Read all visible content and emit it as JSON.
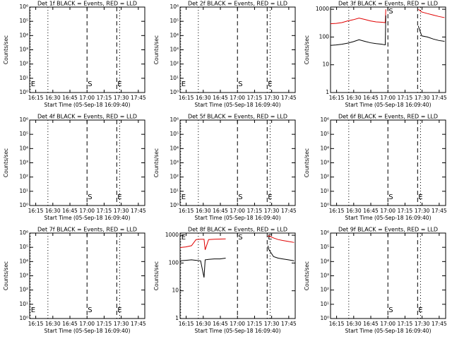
{
  "chart_data": [
    {
      "type": "line",
      "title": "Det 1f BLACK = Events, RED = LLD",
      "xlabel": "Start Time (05-Sep-18 16:09:40)",
      "ylabel": "Counts/sec",
      "xlim": [
        0,
        101
      ],
      "xticks": [
        {
          "value": 5.33,
          "label": "16:15"
        },
        {
          "value": 20.33,
          "label": "16:30"
        },
        {
          "value": 35.33,
          "label": "16:45"
        },
        {
          "value": 50.33,
          "label": "17:00"
        },
        {
          "value": 65.33,
          "label": "17:15"
        },
        {
          "value": 80.33,
          "label": "17:30"
        },
        {
          "value": 95.33,
          "label": "17:45"
        }
      ],
      "ylog": true,
      "ylim": [
        1,
        1000000
      ],
      "yticks": [
        {
          "value": 1,
          "label": "10⁰"
        },
        {
          "value": 10,
          "label": "10¹"
        },
        {
          "value": 100,
          "label": "10²"
        },
        {
          "value": 1000,
          "label": "10³"
        },
        {
          "value": 10000,
          "label": "10⁴"
        },
        {
          "value": 100000,
          "label": "10⁵"
        },
        {
          "value": 1000000,
          "label": "10⁶"
        }
      ],
      "vlines": [
        {
          "x": 0.5,
          "style": "dotted",
          "label": "E"
        },
        {
          "x": 16,
          "style": "dotted"
        },
        {
          "x": 50.33,
          "style": "dashed",
          "label": "S"
        },
        {
          "x": 76.4,
          "style": "dashed",
          "label": "E"
        },
        {
          "x": 79,
          "style": "dotted"
        }
      ],
      "vline_label_position": "bottom",
      "x": [],
      "series": []
    },
    {
      "type": "line",
      "title": "Det 2f BLACK = Events, RED = LLD",
      "xlabel": "Start Time (05-Sep-18 16:09:40)",
      "ylabel": "Counts/sec",
      "xlim": [
        0,
        101
      ],
      "xticks": [
        {
          "value": 5.33,
          "label": "16:15"
        },
        {
          "value": 20.33,
          "label": "16:30"
        },
        {
          "value": 35.33,
          "label": "16:45"
        },
        {
          "value": 50.33,
          "label": "17:00"
        },
        {
          "value": 65.33,
          "label": "17:15"
        },
        {
          "value": 80.33,
          "label": "17:30"
        },
        {
          "value": 95.33,
          "label": "17:45"
        }
      ],
      "ylog": true,
      "ylim": [
        1,
        1000000
      ],
      "yticks": [
        {
          "value": 1,
          "label": "10⁰"
        },
        {
          "value": 10,
          "label": "10¹"
        },
        {
          "value": 100,
          "label": "10²"
        },
        {
          "value": 1000,
          "label": "10³"
        },
        {
          "value": 10000,
          "label": "10⁴"
        },
        {
          "value": 100000,
          "label": "10⁵"
        },
        {
          "value": 1000000,
          "label": "10⁶"
        }
      ],
      "vlines": [
        {
          "x": 0.5,
          "style": "dotted",
          "label": "E"
        },
        {
          "x": 16,
          "style": "dotted"
        },
        {
          "x": 50.33,
          "style": "dashed",
          "label": "S"
        },
        {
          "x": 76.4,
          "style": "dashed",
          "label": "E"
        },
        {
          "x": 79,
          "style": "dotted"
        }
      ],
      "vline_label_position": "bottom",
      "x": [],
      "series": []
    },
    {
      "type": "line",
      "title": "Det 3f BLACK = Events, RED = LLD",
      "xlabel": "Start Time (05-Sep-18 16:09:40)",
      "ylabel": "Counts/sec",
      "xlim": [
        0,
        101
      ],
      "xticks": [
        {
          "value": 5.33,
          "label": "16:15"
        },
        {
          "value": 20.33,
          "label": "16:30"
        },
        {
          "value": 35.33,
          "label": "16:45"
        },
        {
          "value": 50.33,
          "label": "17:00"
        },
        {
          "value": 65.33,
          "label": "17:15"
        },
        {
          "value": 80.33,
          "label": "17:30"
        },
        {
          "value": 95.33,
          "label": "17:45"
        }
      ],
      "ylog": true,
      "ylim": [
        1,
        1200
      ],
      "yticks": [
        1,
        10,
        100,
        1000
      ],
      "vlines": [
        {
          "x": 16,
          "style": "dotted"
        },
        {
          "x": 50.33,
          "style": "dashed",
          "label": "S"
        },
        {
          "x": 76.4,
          "style": "dashed"
        },
        {
          "x": 79,
          "style": "dotted"
        }
      ],
      "vline_label_position": "top",
      "x": [
        0,
        5,
        10,
        15,
        20,
        25,
        30,
        35,
        40,
        45,
        48,
        48.5,
        52,
        77,
        80,
        85,
        90,
        95,
        100
      ],
      "series": [
        {
          "color": "#e00000",
          "values": [
            300,
            310,
            330,
            380,
            420,
            480,
            430,
            380,
            350,
            340,
            330,
            1000,
            null,
            1000,
            800,
            700,
            620,
            550,
            500
          ]
        },
        {
          "color": "#000000",
          "values": [
            50,
            52,
            55,
            60,
            68,
            80,
            70,
            62,
            58,
            55,
            52,
            600,
            null,
            250,
            110,
            100,
            85,
            75,
            70
          ]
        }
      ]
    },
    {
      "type": "line",
      "title": "Det 4f BLACK = Events, RED = LLD",
      "xlabel": "Start Time (05-Sep-18 16:09:40)",
      "ylabel": "Counts/sec",
      "xlim": [
        0,
        101
      ],
      "xticks": [
        {
          "value": 5.33,
          "label": "16:15"
        },
        {
          "value": 20.33,
          "label": "16:30"
        },
        {
          "value": 35.33,
          "label": "16:45"
        },
        {
          "value": 50.33,
          "label": "17:00"
        },
        {
          "value": 65.33,
          "label": "17:15"
        },
        {
          "value": 80.33,
          "label": "17:30"
        },
        {
          "value": 95.33,
          "label": "17:45"
        }
      ],
      "ylog": true,
      "ylim": [
        1,
        1000000
      ],
      "yticks": [
        {
          "value": 1,
          "label": "10⁰"
        },
        {
          "value": 10,
          "label": "10¹"
        },
        {
          "value": 100,
          "label": "10²"
        },
        {
          "value": 1000,
          "label": "10³"
        },
        {
          "value": 10000,
          "label": "10⁴"
        },
        {
          "value": 100000,
          "label": "10⁵"
        },
        {
          "value": 1000000,
          "label": "10⁶"
        }
      ],
      "vlines": [
        {
          "x": 16,
          "style": "dotted"
        },
        {
          "x": 50.33,
          "style": "dashed",
          "label": "S"
        },
        {
          "x": 76.4,
          "style": "dashed",
          "label": "E"
        },
        {
          "x": 79,
          "style": "dotted"
        }
      ],
      "vline_label_position": "bottom",
      "x": [],
      "series": []
    },
    {
      "type": "line",
      "title": "Det 5f BLACK = Events, RED = LLD",
      "xlabel": "Start Time (05-Sep-18 16:09:40)",
      "ylabel": "Counts/sec",
      "xlim": [
        0,
        101
      ],
      "xticks": [
        {
          "value": 5.33,
          "label": "16:15"
        },
        {
          "value": 20.33,
          "label": "16:30"
        },
        {
          "value": 35.33,
          "label": "16:45"
        },
        {
          "value": 50.33,
          "label": "17:00"
        },
        {
          "value": 65.33,
          "label": "17:15"
        },
        {
          "value": 80.33,
          "label": "17:30"
        },
        {
          "value": 95.33,
          "label": "17:45"
        }
      ],
      "ylog": true,
      "ylim": [
        1,
        1000000
      ],
      "yticks": [
        {
          "value": 1,
          "label": "10⁰"
        },
        {
          "value": 10,
          "label": "10¹"
        },
        {
          "value": 100,
          "label": "10²"
        },
        {
          "value": 1000,
          "label": "10³"
        },
        {
          "value": 10000,
          "label": "10⁴"
        },
        {
          "value": 100000,
          "label": "10⁵"
        },
        {
          "value": 1000000,
          "label": "10⁶"
        }
      ],
      "vlines": [
        {
          "x": 0.5,
          "style": "dotted",
          "label": "E"
        },
        {
          "x": 16,
          "style": "dotted"
        },
        {
          "x": 50.33,
          "style": "dashed",
          "label": "S"
        },
        {
          "x": 76.4,
          "style": "dashed",
          "label": "E"
        },
        {
          "x": 79,
          "style": "dotted"
        }
      ],
      "vline_label_position": "bottom",
      "x": [],
      "series": []
    },
    {
      "type": "line",
      "title": "Det 6f BLACK = Events, RED = LLD",
      "xlabel": "Start Time (05-Sep-18 16:09:40)",
      "ylabel": "Counts/sec",
      "xlim": [
        0,
        101
      ],
      "xticks": [
        {
          "value": 5.33,
          "label": "16:15"
        },
        {
          "value": 20.33,
          "label": "16:30"
        },
        {
          "value": 35.33,
          "label": "16:45"
        },
        {
          "value": 50.33,
          "label": "17:00"
        },
        {
          "value": 65.33,
          "label": "17:15"
        },
        {
          "value": 80.33,
          "label": "17:30"
        },
        {
          "value": 95.33,
          "label": "17:45"
        }
      ],
      "ylog": true,
      "ylim": [
        1,
        1000000
      ],
      "yticks": [
        {
          "value": 1,
          "label": "10⁰"
        },
        {
          "value": 10,
          "label": "10¹"
        },
        {
          "value": 100,
          "label": "10²"
        },
        {
          "value": 1000,
          "label": "10³"
        },
        {
          "value": 10000,
          "label": "10⁴"
        },
        {
          "value": 100000,
          "label": "10⁵"
        },
        {
          "value": 1000000,
          "label": "10⁶"
        }
      ],
      "vlines": [
        {
          "x": 16,
          "style": "dotted"
        },
        {
          "x": 50.33,
          "style": "dashed",
          "label": "S"
        },
        {
          "x": 76.4,
          "style": "dashed",
          "label": "E"
        },
        {
          "x": 79,
          "style": "dotted"
        }
      ],
      "vline_label_position": "bottom",
      "x": [],
      "series": []
    },
    {
      "type": "line",
      "title": "Det 7f BLACK = Events, RED = LLD",
      "xlabel": "Start Time (05-Sep-18 16:09:40)",
      "ylabel": "Counts/sec",
      "xlim": [
        0,
        101
      ],
      "xticks": [
        {
          "value": 5.33,
          "label": "16:15"
        },
        {
          "value": 20.33,
          "label": "16:30"
        },
        {
          "value": 35.33,
          "label": "16:45"
        },
        {
          "value": 50.33,
          "label": "17:00"
        },
        {
          "value": 65.33,
          "label": "17:15"
        },
        {
          "value": 80.33,
          "label": "17:30"
        },
        {
          "value": 95.33,
          "label": "17:45"
        }
      ],
      "ylog": true,
      "ylim": [
        1,
        1000000
      ],
      "yticks": [
        {
          "value": 1,
          "label": "10⁰"
        },
        {
          "value": 10,
          "label": "10¹"
        },
        {
          "value": 100,
          "label": "10²"
        },
        {
          "value": 1000,
          "label": "10³"
        },
        {
          "value": 10000,
          "label": "10⁴"
        },
        {
          "value": 100000,
          "label": "10⁵"
        },
        {
          "value": 1000000,
          "label": "10⁶"
        }
      ],
      "vlines": [
        {
          "x": 0.5,
          "style": "dotted",
          "label": "E"
        },
        {
          "x": 16,
          "style": "dotted"
        },
        {
          "x": 50.33,
          "style": "dashed",
          "label": "S"
        },
        {
          "x": 76.4,
          "style": "dashed",
          "label": "E"
        },
        {
          "x": 79,
          "style": "dotted"
        }
      ],
      "vline_label_position": "bottom",
      "x": [],
      "series": []
    },
    {
      "type": "line",
      "title": "Det 8f BLACK = Events, RED = LLD",
      "xlabel": "Start Time (05-Sep-18 16:09:40)",
      "ylabel": "Counts/sec",
      "xlim": [
        0,
        101
      ],
      "xticks": [
        {
          "value": 5.33,
          "label": "16:15"
        },
        {
          "value": 20.33,
          "label": "16:30"
        },
        {
          "value": 35.33,
          "label": "16:45"
        },
        {
          "value": 50.33,
          "label": "17:00"
        },
        {
          "value": 65.33,
          "label": "17:15"
        },
        {
          "value": 80.33,
          "label": "17:30"
        },
        {
          "value": 95.33,
          "label": "17:45"
        }
      ],
      "ylog": true,
      "ylim": [
        1,
        1200
      ],
      "yticks": [
        1,
        10,
        100,
        1000
      ],
      "vlines": [
        {
          "x": 0.5,
          "style": "dotted",
          "label": "E"
        },
        {
          "x": 16,
          "style": "dotted"
        },
        {
          "x": 50.33,
          "style": "dashed",
          "label": "S"
        },
        {
          "x": 76.4,
          "style": "dashed",
          "label": "E"
        },
        {
          "x": 79,
          "style": "dotted"
        }
      ],
      "vline_label_position": "top",
      "x": [
        0,
        5,
        10,
        14,
        18,
        21,
        22,
        25,
        30,
        35,
        40,
        42,
        77,
        78,
        82,
        86,
        90,
        95,
        100
      ],
      "series": [
        {
          "color": "#e00000",
          "values": [
            360,
            380,
            420,
            700,
            720,
            720,
            300,
            700,
            720,
            730,
            740,
            null,
            900,
            950,
            800,
            700,
            650,
            600,
            550
          ]
        },
        {
          "color": "#000000",
          "values": [
            120,
            125,
            130,
            125,
            120,
            30,
            130,
            135,
            140,
            140,
            150,
            null,
            420,
            300,
            170,
            150,
            140,
            130,
            120
          ]
        }
      ]
    },
    {
      "type": "line",
      "title": "Det 9f BLACK = Events, RED = LLD",
      "xlabel": "Start Time (05-Sep-18 16:09:40)",
      "ylabel": "Counts/sec",
      "xlim": [
        0,
        101
      ],
      "xticks": [
        {
          "value": 5.33,
          "label": "16:15"
        },
        {
          "value": 20.33,
          "label": "16:30"
        },
        {
          "value": 35.33,
          "label": "16:45"
        },
        {
          "value": 50.33,
          "label": "17:00"
        },
        {
          "value": 65.33,
          "label": "17:15"
        },
        {
          "value": 80.33,
          "label": "17:30"
        },
        {
          "value": 95.33,
          "label": "17:45"
        }
      ],
      "ylog": true,
      "ylim": [
        1,
        1000000
      ],
      "yticks": [
        {
          "value": 1,
          "label": "10⁰"
        },
        {
          "value": 10,
          "label": "10¹"
        },
        {
          "value": 100,
          "label": "10²"
        },
        {
          "value": 1000,
          "label": "10³"
        },
        {
          "value": 10000,
          "label": "10⁴"
        },
        {
          "value": 100000,
          "label": "10⁵"
        },
        {
          "value": 1000000,
          "label": "10⁶"
        }
      ],
      "vlines": [
        {
          "x": 16,
          "style": "dotted"
        },
        {
          "x": 50.33,
          "style": "dashed",
          "label": "S"
        },
        {
          "x": 76.4,
          "style": "dashed",
          "label": "E"
        },
        {
          "x": 79,
          "style": "dotted"
        }
      ],
      "vline_label_position": "bottom",
      "x": [],
      "series": []
    }
  ]
}
